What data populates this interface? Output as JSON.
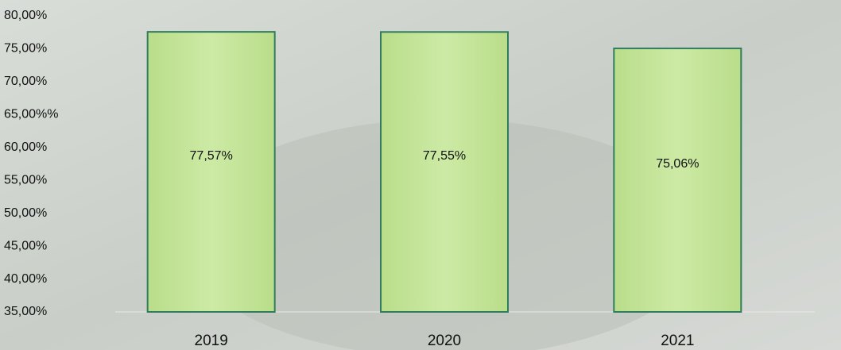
{
  "chart_data": {
    "type": "bar",
    "categories": [
      "2019",
      "2020",
      "2021"
    ],
    "values": [
      77.57,
      77.55,
      75.06
    ],
    "value_labels": [
      "77,57%",
      "77,55%",
      "75,06%"
    ],
    "color": "#c5e59a",
    "ylim": [
      35,
      80
    ],
    "yticks": [
      {
        "value": 35,
        "label": "35,00%"
      },
      {
        "value": 40,
        "label": "40,00%"
      },
      {
        "value": 45,
        "label": "45,00%"
      },
      {
        "value": 50,
        "label": "50,00%"
      },
      {
        "value": 55,
        "label": "55,00%"
      },
      {
        "value": 60,
        "label": "60,00%"
      },
      {
        "value": 65,
        "label": "65,00%%"
      },
      {
        "value": 70,
        "label": "70,00%"
      },
      {
        "value": 75,
        "label": "75,00%"
      },
      {
        "value": 80,
        "label": "80,00%"
      }
    ]
  }
}
